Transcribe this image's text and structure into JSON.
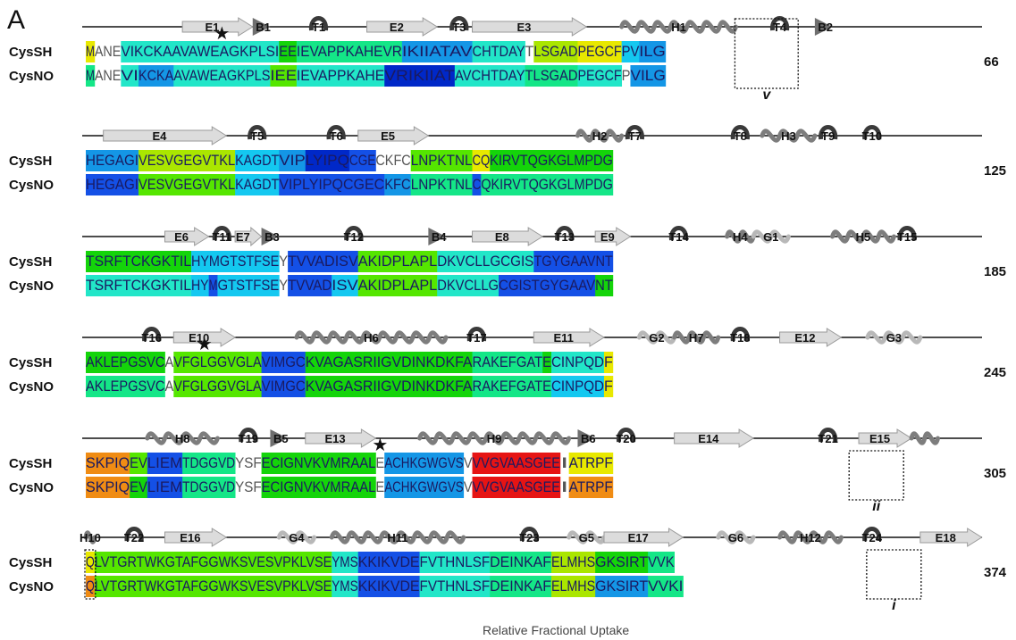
{
  "panel_label": "A",
  "footer_text": "Relative Fractional Uptake",
  "row_labels": [
    "CysSH",
    "CysNO"
  ],
  "colors": {
    "yellow": "#e8e800",
    "yg": "#aae600",
    "lime": "#55e600",
    "green": "#14d40a",
    "spring": "#14e687",
    "teal": "#22e6c8",
    "cyan": "#14c8f0",
    "sky": "#1496e6",
    "blue": "#1450e6",
    "navy": "#0028c8",
    "orange": "#f08c14",
    "red": "#e61414"
  },
  "blocks": [
    {
      "end_number": "66",
      "ss": [
        {
          "label": "E1",
          "type": "E",
          "from": 11,
          "to": 18
        },
        {
          "label": "B1",
          "type": "B",
          "from": 19,
          "to": 20
        },
        {
          "label": "T1",
          "type": "T",
          "from": 25,
          "to": 27
        },
        {
          "label": "E2",
          "type": "E",
          "from": 32,
          "to": 39
        },
        {
          "label": "T3",
          "type": "T",
          "from": 41,
          "to": 43
        },
        {
          "label": "E3",
          "type": "E",
          "from": 44,
          "to": 56
        },
        {
          "label": "H1",
          "type": "H",
          "from": 61,
          "to": 73
        },
        {
          "label": "T4",
          "type": "T",
          "from": 77,
          "to": 80
        },
        {
          "label": "B2",
          "type": "B",
          "from": 83,
          "to": 84
        }
      ],
      "stars": [
        15
      ],
      "box": {
        "from": 74,
        "to": 80,
        "note": "v"
      },
      "seq_SH": [
        {
          "t": "M",
          "c": "yellow"
        },
        {
          "t": "ANE",
          "c": ""
        },
        {
          "t": "VIKCKAAVAWEAGKPLSI",
          "c": "teal"
        },
        {
          "t": "EE",
          "c": "green"
        },
        {
          "t": "IEVAPPKAHEVR",
          "c": "spring"
        },
        {
          "t": "IKIIATAV",
          "c": "sky"
        },
        {
          "t": "CHTDAY",
          "c": "teal"
        },
        {
          "t": "T",
          "c": ""
        },
        {
          "t": "LSGAD",
          "c": "yg"
        },
        {
          "t": "PEGCF",
          "c": "yellow"
        },
        {
          "t": "PV",
          "c": "cyan"
        },
        {
          "t": "ILG",
          "c": "sky"
        }
      ],
      "seq_NO": [
        {
          "t": "M",
          "c": "spring"
        },
        {
          "t": "ANE",
          "c": ""
        },
        {
          "t": "VI",
          "c": "teal"
        },
        {
          "t": "KCKA",
          "c": "sky"
        },
        {
          "t": "AVAWEAGKPLS",
          "c": "teal"
        },
        {
          "t": "IEE",
          "c": "lime"
        },
        {
          "t": "IEVAPPKAHE",
          "c": "teal"
        },
        {
          "t": "VRIKIIAT",
          "c": "navy"
        },
        {
          "t": "AVCHTDAY",
          "c": "teal"
        },
        {
          "t": "TLSGAD",
          "c": "spring"
        },
        {
          "t": "PEGCF",
          "c": "teal"
        },
        {
          "t": "P",
          "c": ""
        },
        {
          "t": "VILG",
          "c": "sky"
        }
      ]
    },
    {
      "end_number": "125",
      "ss": [
        {
          "label": "E4",
          "type": "E",
          "from": 2,
          "to": 15
        },
        {
          "label": "T5",
          "type": "T",
          "from": 18,
          "to": 20
        },
        {
          "label": "T6",
          "type": "T",
          "from": 27,
          "to": 29
        },
        {
          "label": "E5",
          "type": "E",
          "from": 31,
          "to": 38
        },
        {
          "label": "H2",
          "type": "H",
          "from": 56,
          "to": 60
        },
        {
          "label": "T7",
          "type": "T",
          "from": 61,
          "to": 63
        },
        {
          "label": "T8",
          "type": "T",
          "from": 73,
          "to": 75
        },
        {
          "label": "H3",
          "type": "H",
          "from": 77,
          "to": 82
        },
        {
          "label": "T9",
          "type": "T",
          "from": 83,
          "to": 85
        },
        {
          "label": "T10",
          "type": "T",
          "from": 88,
          "to": 90
        }
      ],
      "stars": [],
      "seq_SH": [
        {
          "t": "HEGAGI",
          "c": "sky"
        },
        {
          "t": "VESVGEGVTKL",
          "c": "yg"
        },
        {
          "t": "KAGDT",
          "c": "cyan"
        },
        {
          "t": "VIP",
          "c": "sky"
        },
        {
          "t": "LYIPQ",
          "c": "navy"
        },
        {
          "t": "CGE",
          "c": "blue"
        },
        {
          "t": "CKFC",
          "c": ""
        },
        {
          "t": "LNPKTNL",
          "c": "lime"
        },
        {
          "t": "CQ",
          "c": "yellow"
        },
        {
          "t": "KIRVTQGKGLMPDG",
          "c": "green"
        }
      ],
      "seq_NO": [
        {
          "t": "HEGAGI",
          "c": "blue"
        },
        {
          "t": "VESVGEGVTKL",
          "c": "lime"
        },
        {
          "t": "KAGDT",
          "c": "cyan"
        },
        {
          "t": "VIPLYIPQCGEC",
          "c": "blue"
        },
        {
          "t": "KFC",
          "c": "sky"
        },
        {
          "t": "LNPKTNL",
          "c": "spring"
        },
        {
          "t": "C",
          "c": "blue"
        },
        {
          "t": "QKIRVTQGKGLMPDG",
          "c": "spring"
        }
      ]
    },
    {
      "end_number": "185",
      "ss": [
        {
          "label": "E6",
          "type": "E",
          "from": 9,
          "to": 13
        },
        {
          "label": "T11",
          "type": "T",
          "from": 14,
          "to": 16
        },
        {
          "label": "E7",
          "type": "E",
          "from": 17,
          "to": 19
        },
        {
          "label": "B3",
          "type": "B",
          "from": 20,
          "to": 21
        },
        {
          "label": "T12",
          "type": "T",
          "from": 29,
          "to": 31
        },
        {
          "label": "B4",
          "type": "B",
          "from": 39,
          "to": 40
        },
        {
          "label": "E8",
          "type": "E",
          "from": 44,
          "to": 51
        },
        {
          "label": "T13",
          "type": "T",
          "from": 53,
          "to": 55
        },
        {
          "label": "E9",
          "type": "E",
          "from": 58,
          "to": 61
        },
        {
          "label": "T14",
          "type": "T",
          "from": 66,
          "to": 68
        },
        {
          "label": "H4",
          "type": "H",
          "from": 73,
          "to": 75
        },
        {
          "label": "G1",
          "type": "G",
          "from": 76,
          "to": 79
        },
        {
          "label": "H5",
          "type": "H",
          "from": 85,
          "to": 91
        },
        {
          "label": "T15",
          "type": "T",
          "from": 92,
          "to": 94
        }
      ],
      "stars": [],
      "seq_SH": [
        {
          "t": "TSRFTCKGKTIL",
          "c": "green"
        },
        {
          "t": "HYMGTSTFSE",
          "c": "cyan"
        },
        {
          "t": "Y",
          "c": ""
        },
        {
          "t": "TVVADISV",
          "c": "blue"
        },
        {
          "t": "AKIDPLAPL",
          "c": "lime"
        },
        {
          "t": "DKVCLLGCGIS",
          "c": "teal"
        },
        {
          "t": "TGYGAAVNT",
          "c": "blue"
        }
      ],
      "seq_NO": [
        {
          "t": "TSRFTCKGKTIL",
          "c": "teal"
        },
        {
          "t": "HY",
          "c": "cyan"
        },
        {
          "t": "M",
          "c": "blue"
        },
        {
          "t": "GTSTFSE",
          "c": "cyan"
        },
        {
          "t": "Y",
          "c": ""
        },
        {
          "t": "TVVAD",
          "c": "blue"
        },
        {
          "t": "ISV",
          "c": "cyan"
        },
        {
          "t": "AKIDPLAPL",
          "c": "lime"
        },
        {
          "t": "DKVCLLG",
          "c": "teal"
        },
        {
          "t": "CGISTGYGAAV",
          "c": "blue"
        },
        {
          "t": "NT",
          "c": "green"
        }
      ]
    },
    {
      "end_number": "245",
      "ss": [
        {
          "label": "T16",
          "type": "T",
          "from": 6,
          "to": 8
        },
        {
          "label": "E10",
          "type": "E",
          "from": 10,
          "to": 16
        },
        {
          "label": "H6",
          "type": "H",
          "from": 24,
          "to": 40
        },
        {
          "label": "T17",
          "type": "T",
          "from": 43,
          "to": 45
        },
        {
          "label": "E11",
          "type": "E",
          "from": 51,
          "to": 58
        },
        {
          "label": "G2",
          "type": "G",
          "from": 63,
          "to": 66
        },
        {
          "label": "H7",
          "type": "H",
          "from": 67,
          "to": 71
        },
        {
          "label": "T18",
          "type": "T",
          "from": 73,
          "to": 75
        },
        {
          "label": "E12",
          "type": "E",
          "from": 79,
          "to": 85
        },
        {
          "label": "G3",
          "type": "G",
          "from": 89,
          "to": 94
        }
      ],
      "stars": [
        13
      ],
      "seq_SH": [
        {
          "t": "AKLEPGSVC",
          "c": "green"
        },
        {
          "t": "A",
          "c": ""
        },
        {
          "t": "VFGLGGVGLA",
          "c": "lime"
        },
        {
          "t": "VIMGC",
          "c": "blue"
        },
        {
          "t": "KVAGASRIIGVDINKDKFA",
          "c": "green"
        },
        {
          "t": "RAKEFGAT",
          "c": "spring"
        },
        {
          "t": "E",
          "c": "green"
        },
        {
          "t": "CINPQD",
          "c": "teal"
        },
        {
          "t": "F",
          "c": "yellow"
        }
      ],
      "seq_NO": [
        {
          "t": "AKLEPGSVC",
          "c": "spring"
        },
        {
          "t": "A",
          "c": ""
        },
        {
          "t": "VFGLGGVGLA",
          "c": "lime"
        },
        {
          "t": "VIMGC",
          "c": "blue"
        },
        {
          "t": "KVAGASRIIGVDINKDKFA",
          "c": "green"
        },
        {
          "t": "RAKEFGATE",
          "c": "spring"
        },
        {
          "t": "CINPQD",
          "c": "cyan"
        },
        {
          "t": "F",
          "c": "yellow"
        }
      ]
    },
    {
      "end_number": "305",
      "ss": [
        {
          "label": "H8",
          "type": "H",
          "from": 7,
          "to": 14
        },
        {
          "label": "T19",
          "type": "T",
          "from": 17,
          "to": 19
        },
        {
          "label": "B5",
          "type": "B",
          "from": 21,
          "to": 22
        },
        {
          "label": "E13",
          "type": "E",
          "from": 25,
          "to": 32
        },
        {
          "label": "H9",
          "type": "H",
          "from": 38,
          "to": 54
        },
        {
          "label": "B6",
          "type": "B",
          "from": 56,
          "to": 57
        },
        {
          "label": "T20",
          "type": "T",
          "from": 60,
          "to": 62
        },
        {
          "label": "E14",
          "type": "E",
          "from": 67,
          "to": 75
        },
        {
          "label": "T21",
          "type": "T",
          "from": 83,
          "to": 85
        },
        {
          "label": "E15",
          "type": "E",
          "from": 88,
          "to": 93
        },
        {
          "label": "",
          "type": "H",
          "from": 94,
          "to": 96
        }
      ],
      "stars": [
        33
      ],
      "box": {
        "from": 87,
        "to": 92,
        "note": "ii"
      },
      "seq_SH": [
        {
          "t": "SKPIQ",
          "c": "orange"
        },
        {
          "t": "EV",
          "c": "lime"
        },
        {
          "t": "LIEM",
          "c": "blue"
        },
        {
          "t": "TDGGVD",
          "c": "spring"
        },
        {
          "t": "YSF",
          "c": ""
        },
        {
          "t": "ECIGNVKVMRAAL",
          "c": "green"
        },
        {
          "t": "E",
          "c": ""
        },
        {
          "t": "ACHKGWGVS",
          "c": "sky"
        },
        {
          "t": "V",
          "c": ""
        },
        {
          "t": "VVGVAASGEE",
          "c": "red"
        },
        {
          "t": "I",
          "c": ""
        },
        {
          "t": "ATRPF",
          "c": "yellow"
        }
      ],
      "seq_NO": [
        {
          "t": "SKPIQ",
          "c": "orange"
        },
        {
          "t": "EV",
          "c": "green"
        },
        {
          "t": "LIEM",
          "c": "blue"
        },
        {
          "t": "TDGGVD",
          "c": "spring"
        },
        {
          "t": "YSF",
          "c": ""
        },
        {
          "t": "ECIGNVKVMRAAL",
          "c": "green"
        },
        {
          "t": "E",
          "c": ""
        },
        {
          "t": "ACHKGWGVS",
          "c": "sky"
        },
        {
          "t": "V",
          "c": ""
        },
        {
          "t": "VVGVAASGEE",
          "c": "red"
        },
        {
          "t": "I",
          "c": ""
        },
        {
          "t": "ATRPF",
          "c": "orange"
        }
      ]
    },
    {
      "end_number": "374",
      "ss": [
        {
          "label": "H10",
          "type": "H",
          "from": 0,
          "to": 0
        },
        {
          "label": "T22",
          "type": "T",
          "from": 4,
          "to": 6
        },
        {
          "label": "E16",
          "type": "E",
          "from": 9,
          "to": 15
        },
        {
          "label": "G4",
          "type": "G",
          "from": 22,
          "to": 25
        },
        {
          "label": "H11",
          "type": "H",
          "from": 28,
          "to": 42
        },
        {
          "label": "T23",
          "type": "T",
          "from": 49,
          "to": 51
        },
        {
          "label": "G5",
          "type": "G",
          "from": 55,
          "to": 58
        },
        {
          "label": "E17",
          "type": "E",
          "from": 59,
          "to": 67
        },
        {
          "label": "G6",
          "type": "G",
          "from": 72,
          "to": 75
        },
        {
          "label": "H12",
          "type": "H",
          "from": 79,
          "to": 85
        },
        {
          "label": "T24",
          "type": "T",
          "from": 88,
          "to": 90
        },
        {
          "label": "E18",
          "type": "E",
          "from": 95,
          "to": 101
        }
      ],
      "stars": [],
      "box": {
        "from": 89,
        "to": 94,
        "note": "i"
      },
      "box2": {
        "from": 0,
        "to": 0
      },
      "seq_SH": [
        {
          "t": "Q",
          "c": "yellow"
        },
        {
          "t": "LVTGRTWKGTAFGGWKSVESVPKLVSE",
          "c": "lime"
        },
        {
          "t": "YMS",
          "c": "teal"
        },
        {
          "t": "KKIKVDE",
          "c": "blue"
        },
        {
          "t": "FVTHNLSF",
          "c": "teal"
        },
        {
          "t": "DEINKAF",
          "c": "spring"
        },
        {
          "t": "ELMHS",
          "c": "yg"
        },
        {
          "t": "GKSIRT",
          "c": "green"
        },
        {
          "t": "VVK",
          "c": "spring"
        }
      ],
      "seq_NO": [
        {
          "t": "Q",
          "c": "orange"
        },
        {
          "t": "LVTGRTWKGTAFGGWKSVESVPKLVSE",
          "c": "lime"
        },
        {
          "t": "YMS",
          "c": "teal"
        },
        {
          "t": "KKIKVDE",
          "c": "blue"
        },
        {
          "t": "FVTHNLSF",
          "c": "teal"
        },
        {
          "t": "DEINKAF",
          "c": "spring"
        },
        {
          "t": "ELMHS",
          "c": "yg"
        },
        {
          "t": "GKSIRT",
          "c": "sky"
        },
        {
          "t": "VVKI",
          "c": "spring"
        }
      ]
    }
  ]
}
